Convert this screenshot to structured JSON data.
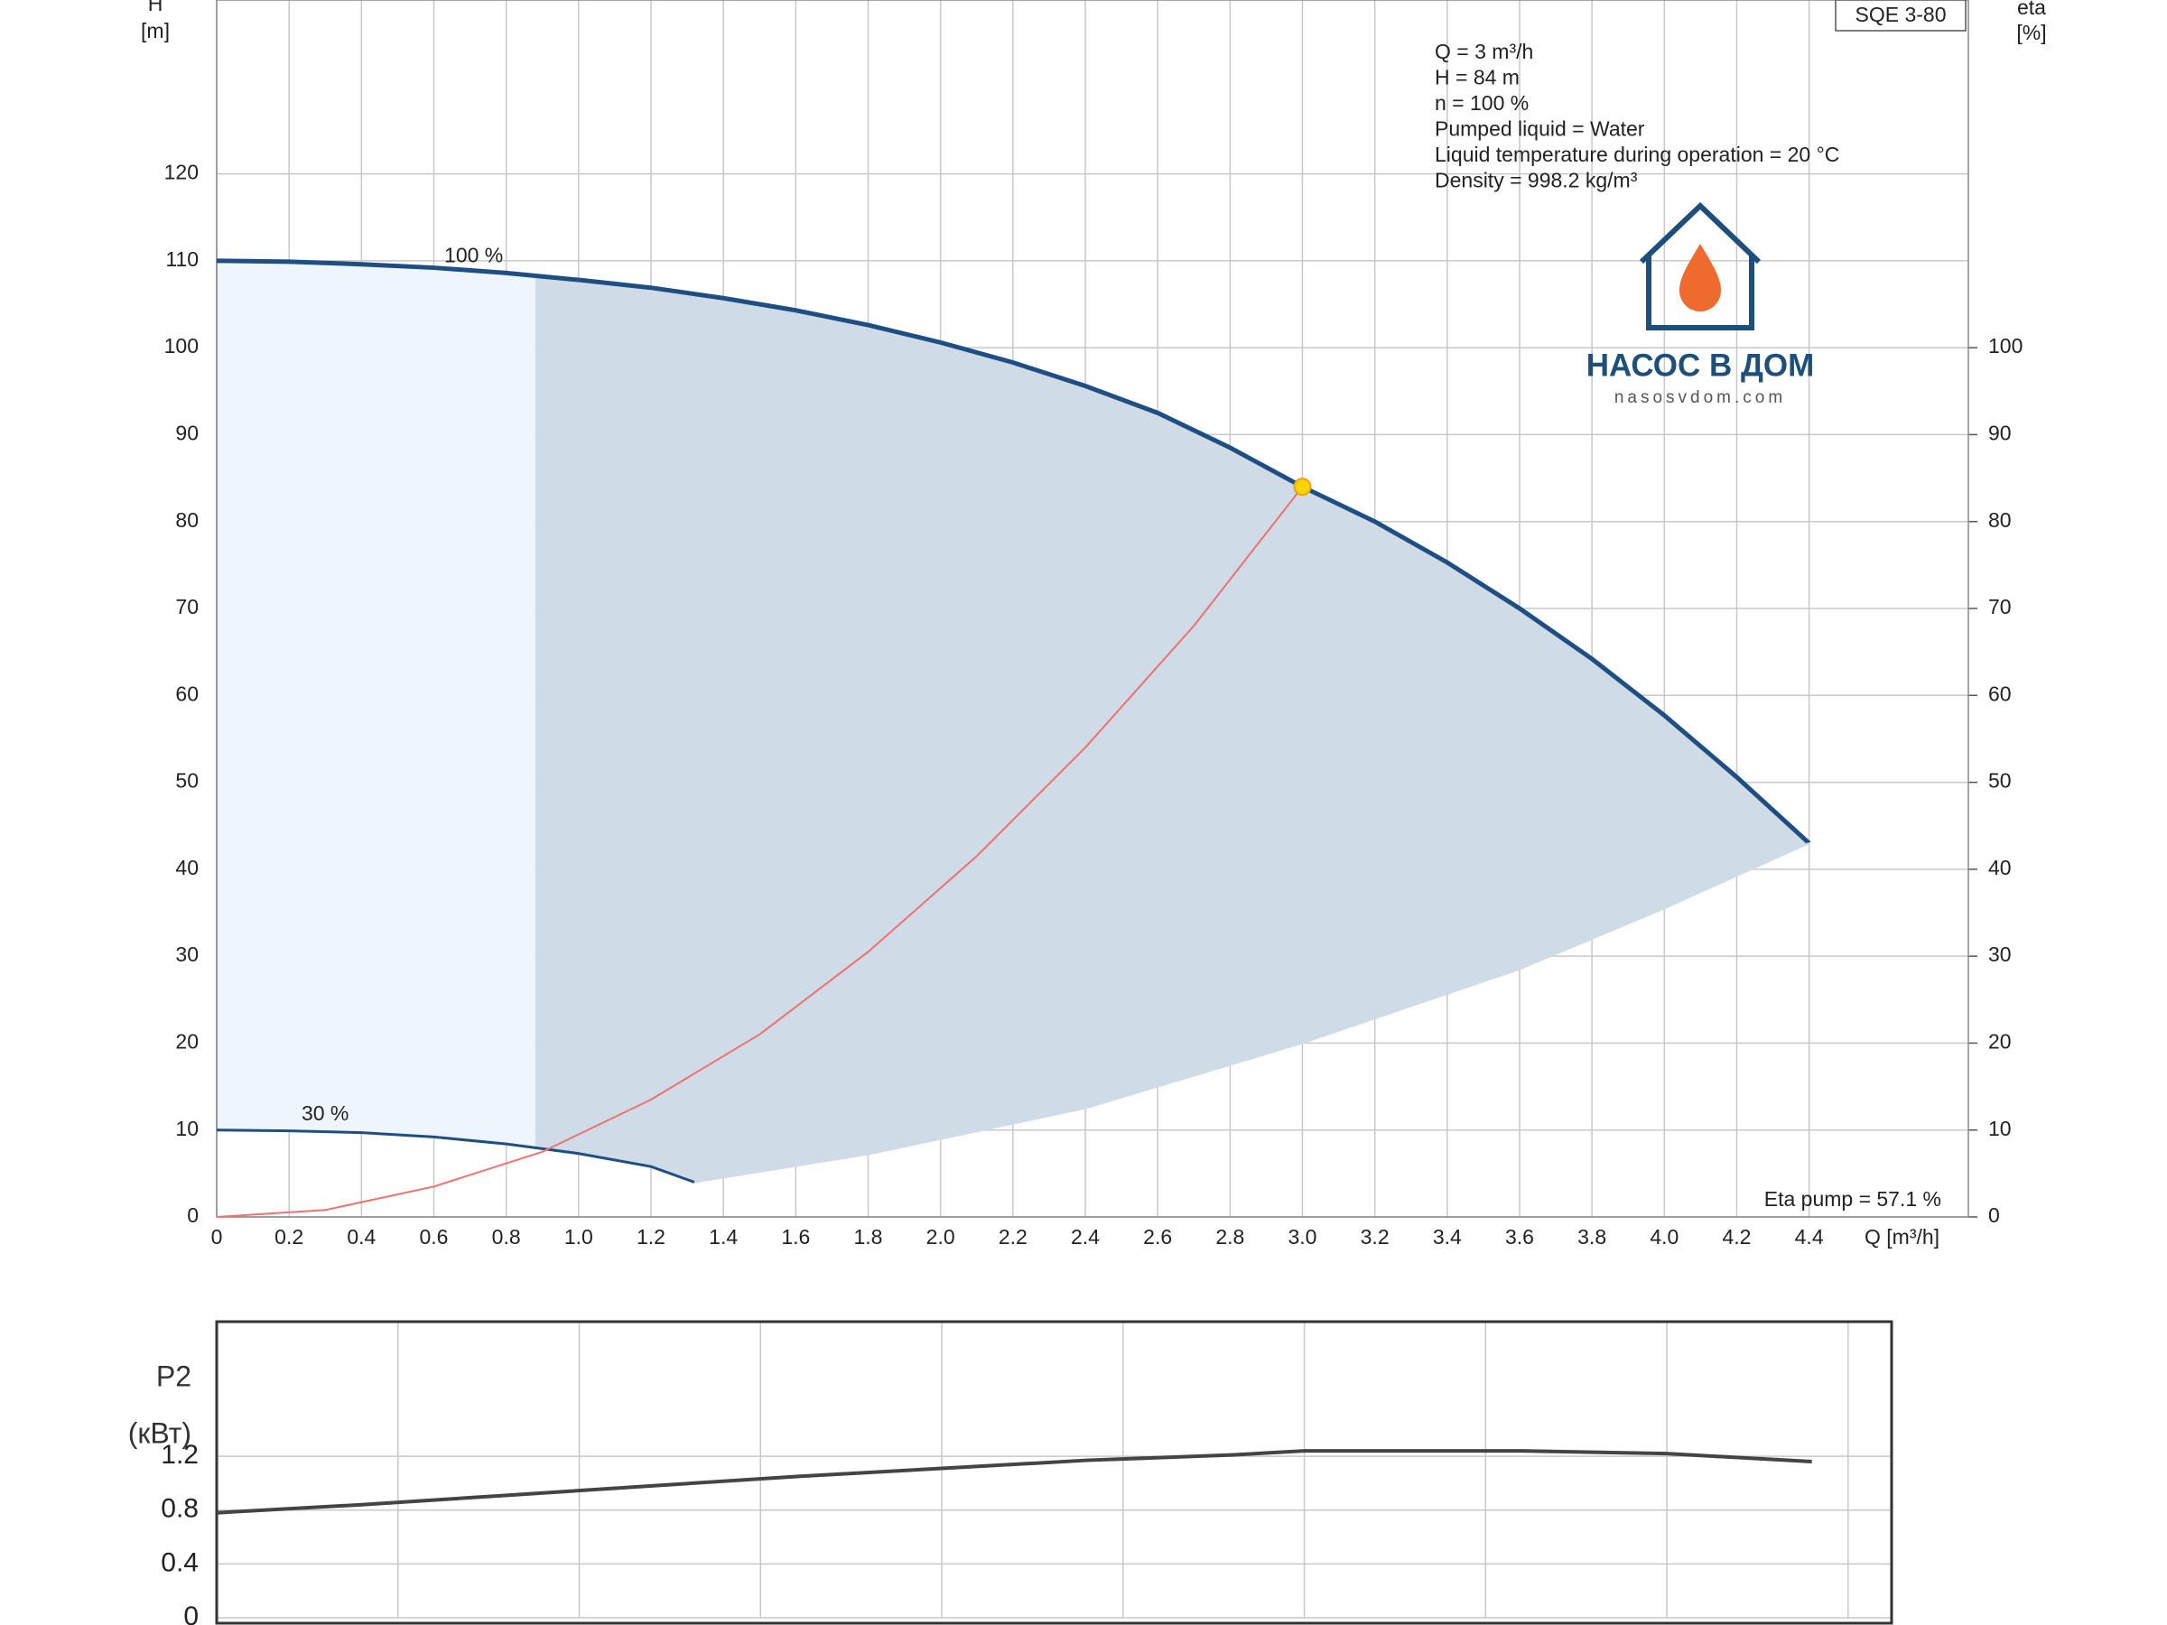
{
  "chart_data": [
    {
      "type": "line",
      "title": "SQE 3-80",
      "ylabel": [
        "H",
        "[m]"
      ],
      "y2label": [
        "eta",
        "[%]"
      ],
      "xlabel": "Q [m³/h]",
      "annotations": [
        "Q = 3 m³/h",
        "H = 84 m",
        "n = 100 %",
        "Pumped liquid = Water",
        "Liquid temperature during operation = 20 °C",
        "Density = 998.2 kg/m³"
      ],
      "note": "Eta pump = 57.1 %",
      "watermark": {
        "name": "НАСОС В ДОМ",
        "site": "nasosvdom.com"
      },
      "xlim": [
        0,
        4.84
      ],
      "xticks": [
        0,
        0.2,
        0.4,
        0.6,
        0.8,
        {
          "value": 1,
          "label": "1.0"
        },
        1.2,
        1.4,
        1.6,
        1.8,
        {
          "value": 2,
          "label": "2.0"
        },
        2.2,
        2.4,
        2.6,
        2.8,
        {
          "value": 3,
          "label": "3.0"
        },
        3.2,
        3.4,
        3.6,
        3.8,
        {
          "value": 4,
          "label": "4.0"
        },
        4.2,
        4.4
      ],
      "ylim": [
        0,
        140
      ],
      "yticks": [
        0,
        10,
        20,
        30,
        40,
        50,
        60,
        70,
        80,
        90,
        100,
        110,
        120
      ],
      "y2lim": [
        0,
        140
      ],
      "y2ticks": [
        0,
        10,
        20,
        30,
        40,
        50,
        60,
        70,
        80,
        90,
        100
      ],
      "grid": true,
      "shade_from_x": 0.88,
      "series": [
        {
          "name": "100 %",
          "color": "#1f4f82",
          "x": [
            0,
            0.2,
            0.4,
            0.6,
            0.8,
            1.0,
            1.2,
            1.4,
            1.6,
            1.8,
            2.0,
            2.2,
            2.4,
            2.6,
            2.8,
            3.0,
            3.2,
            3.4,
            3.6,
            3.8,
            4.0,
            4.2,
            4.4
          ],
          "values": [
            110,
            109.9,
            109.6,
            109.2,
            108.6,
            107.8,
            106.9,
            105.7,
            104.3,
            102.6,
            100.6,
            98.3,
            95.6,
            92.5,
            88.5,
            84,
            80,
            75.3,
            70,
            64.2,
            57.7,
            50.6,
            43
          ]
        },
        {
          "name": "30 %",
          "color": "#1f4f82",
          "x": [
            0,
            0.2,
            0.4,
            0.6,
            0.8,
            1.0,
            1.2,
            1.32
          ],
          "values": [
            10,
            9.9,
            9.7,
            9.2,
            8.4,
            7.3,
            5.8,
            4
          ]
        },
        {
          "color": "#cfdbe7",
          "x": [
            1.32,
            1.8,
            2.4,
            3.0,
            3.6,
            4.0,
            4.4
          ],
          "values": [
            4,
            7.2,
            12.5,
            20,
            28.5,
            35.5,
            43
          ]
        },
        {
          "color": "#f07070",
          "x": [
            0,
            0.3,
            0.6,
            0.9,
            1.2,
            1.5,
            1.8,
            2.1,
            2.4,
            2.7,
            3.0
          ],
          "values": [
            0,
            0.8,
            3.5,
            7.5,
            13.5,
            21,
            30.5,
            41.5,
            54,
            68,
            84
          ]
        }
      ],
      "point": {
        "x": 3,
        "value": 84,
        "color": "#ffd400"
      }
    },
    {
      "type": "line",
      "ylabel": [
        "P2",
        "(кВт)"
      ],
      "xlim": [
        0,
        4.62
      ],
      "xgrid": [
        0.5,
        1,
        1.5,
        2,
        2.5,
        3,
        3.5,
        4,
        4.5
      ],
      "ylim": [
        0,
        2.2
      ],
      "yticks": [
        0,
        0.4,
        0.8,
        1.2
      ],
      "grid": true,
      "series": [
        {
          "color": "#444444",
          "x": [
            0,
            0.4,
            0.8,
            1.2,
            1.6,
            2.0,
            2.4,
            2.8,
            3.0,
            3.2,
            3.6,
            4.0,
            4.4
          ],
          "values": [
            0.78,
            0.84,
            0.91,
            0.98,
            1.05,
            1.11,
            1.17,
            1.21,
            1.24,
            1.24,
            1.24,
            1.22,
            1.16
          ]
        }
      ]
    }
  ]
}
